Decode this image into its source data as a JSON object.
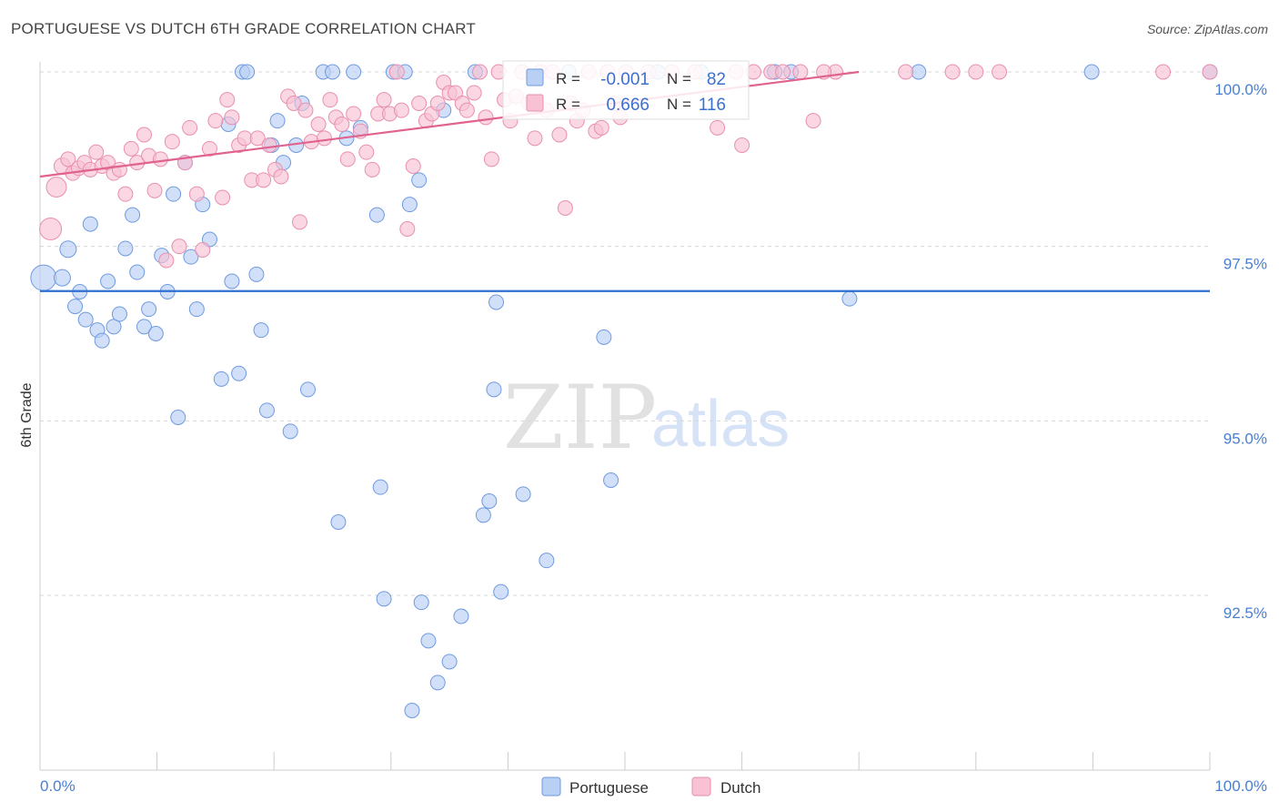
{
  "header": {
    "title": "PORTUGUESE VS DUTCH 6TH GRADE CORRELATION CHART",
    "source": "Source: ZipAtlas.com"
  },
  "watermark": {
    "zip": "ZIP",
    "atlas": "atlas"
  },
  "stats": {
    "r_label": "R =",
    "n_label": "N =",
    "portuguese": {
      "r": "-0.001",
      "n": "82"
    },
    "dutch": {
      "r": "0.666",
      "n": "116"
    }
  },
  "legend": {
    "portuguese": "Portuguese",
    "dutch": "Dutch"
  },
  "colors": {
    "portuguese_fill": "#b8d0f4",
    "portuguese_stroke": "#6f9ae0",
    "portuguese_line": "#2f6fd0",
    "dutch_fill": "#f8c2d4",
    "dutch_stroke": "#e98fb0",
    "dutch_line": "#e0628e"
  },
  "chart_data": {
    "type": "scatter",
    "title": "PORTUGUESE VS DUTCH 6TH GRADE CORRELATION CHART",
    "xlabel": "",
    "ylabel": "6th Grade",
    "xlim": [
      0,
      100
    ],
    "ylim": [
      90.0,
      100.4
    ],
    "x_tick_labels": [
      "0.0%",
      "100.0%"
    ],
    "y_ticks": [
      {
        "value": 100.0,
        "label": "100.0%"
      },
      {
        "value": 97.5,
        "label": "97.5%"
      },
      {
        "value": 95.0,
        "label": "95.0%"
      },
      {
        "value": 92.5,
        "label": "92.5%"
      }
    ],
    "legend_position": "bottom",
    "series": [
      {
        "name": "Portuguese",
        "r": -0.001,
        "n": 82,
        "trend": {
          "x": [
            0,
            100
          ],
          "y": [
            96.86,
            96.86
          ]
        },
        "points": [
          [
            0.3,
            97.05,
            28
          ],
          [
            1.9,
            97.05,
            18
          ],
          [
            2.4,
            97.46,
            18
          ],
          [
            3.0,
            96.64,
            16
          ],
          [
            3.4,
            96.85,
            16
          ],
          [
            3.9,
            96.45,
            16
          ],
          [
            4.3,
            97.82,
            16
          ],
          [
            4.9,
            96.3,
            16
          ],
          [
            5.3,
            96.15,
            16
          ],
          [
            5.8,
            97.0,
            16
          ],
          [
            6.3,
            96.35,
            16
          ],
          [
            6.8,
            96.53,
            16
          ],
          [
            7.3,
            97.47,
            16
          ],
          [
            7.9,
            97.95,
            16
          ],
          [
            8.3,
            97.13,
            16
          ],
          [
            8.9,
            96.35,
            16
          ],
          [
            9.3,
            96.6,
            16
          ],
          [
            9.9,
            96.25,
            16
          ],
          [
            10.4,
            97.37,
            16
          ],
          [
            10.9,
            96.85,
            16
          ],
          [
            11.4,
            98.25,
            16
          ],
          [
            11.8,
            95.05,
            16
          ],
          [
            12.4,
            98.7,
            16
          ],
          [
            12.9,
            97.35,
            16
          ],
          [
            13.4,
            96.6,
            16
          ],
          [
            13.9,
            98.1,
            16
          ],
          [
            14.5,
            97.6,
            16
          ],
          [
            15.5,
            95.6,
            16
          ],
          [
            16.1,
            99.25,
            16
          ],
          [
            16.4,
            97.0,
            16
          ],
          [
            17.0,
            95.68,
            16
          ],
          [
            17.3,
            100.0,
            16
          ],
          [
            17.7,
            100.0,
            16
          ],
          [
            18.5,
            97.1,
            16
          ],
          [
            18.9,
            96.3,
            16
          ],
          [
            19.4,
            95.15,
            16
          ],
          [
            19.8,
            98.95,
            16
          ],
          [
            20.3,
            99.3,
            16
          ],
          [
            20.8,
            98.7,
            16
          ],
          [
            21.4,
            94.85,
            16
          ],
          [
            21.9,
            98.95,
            16
          ],
          [
            22.4,
            99.55,
            16
          ],
          [
            22.9,
            95.45,
            16
          ],
          [
            24.2,
            100.0,
            16
          ],
          [
            25.0,
            100.0,
            16
          ],
          [
            25.5,
            93.55,
            16
          ],
          [
            26.2,
            99.05,
            16
          ],
          [
            26.8,
            100.0,
            16
          ],
          [
            27.4,
            99.2,
            16
          ],
          [
            28.8,
            97.95,
            16
          ],
          [
            29.1,
            94.05,
            16
          ],
          [
            29.4,
            92.45,
            16
          ],
          [
            30.2,
            100.0,
            16
          ],
          [
            31.2,
            100.0,
            16
          ],
          [
            31.6,
            98.1,
            16
          ],
          [
            31.8,
            90.85,
            16
          ],
          [
            32.4,
            98.45,
            16
          ],
          [
            32.6,
            92.4,
            16
          ],
          [
            33.2,
            91.85,
            16
          ],
          [
            34.0,
            91.25,
            16
          ],
          [
            34.5,
            99.45,
            16
          ],
          [
            35.0,
            91.55,
            16
          ],
          [
            36.0,
            92.2,
            16
          ],
          [
            37.2,
            100.0,
            16
          ],
          [
            37.9,
            93.65,
            16
          ],
          [
            38.4,
            93.85,
            16
          ],
          [
            38.8,
            95.45,
            16
          ],
          [
            39.0,
            96.7,
            16
          ],
          [
            39.4,
            92.55,
            16
          ],
          [
            41.3,
            93.95,
            16
          ],
          [
            43.3,
            93.0,
            16
          ],
          [
            45.2,
            100.0,
            16
          ],
          [
            48.2,
            96.2,
            16
          ],
          [
            48.8,
            94.15,
            16
          ],
          [
            52.8,
            100.0,
            16
          ],
          [
            56.5,
            100.0,
            16
          ],
          [
            62.8,
            100.0,
            16
          ],
          [
            64.2,
            100.0,
            16
          ],
          [
            69.2,
            96.75,
            16
          ],
          [
            75.1,
            100.0,
            16
          ],
          [
            89.9,
            100.0,
            16
          ],
          [
            100.0,
            100.0,
            16
          ]
        ]
      },
      {
        "name": "Dutch",
        "r": 0.666,
        "n": 116,
        "trend": {
          "x": [
            0,
            70
          ],
          "y": [
            98.5,
            100.0
          ]
        },
        "points": [
          [
            0.9,
            97.75,
            24
          ],
          [
            1.4,
            98.35,
            22
          ],
          [
            1.9,
            98.65,
            18
          ],
          [
            2.4,
            98.75,
            16
          ],
          [
            2.8,
            98.55,
            16
          ],
          [
            3.3,
            98.62,
            16
          ],
          [
            3.8,
            98.7,
            16
          ],
          [
            4.3,
            98.6,
            16
          ],
          [
            4.8,
            98.85,
            16
          ],
          [
            5.3,
            98.65,
            16
          ],
          [
            5.8,
            98.7,
            16
          ],
          [
            6.3,
            98.55,
            16
          ],
          [
            6.8,
            98.6,
            16
          ],
          [
            7.3,
            98.25,
            16
          ],
          [
            7.8,
            98.9,
            16
          ],
          [
            8.3,
            98.7,
            16
          ],
          [
            8.9,
            99.1,
            16
          ],
          [
            9.3,
            98.8,
            16
          ],
          [
            9.8,
            98.3,
            16
          ],
          [
            10.3,
            98.75,
            16
          ],
          [
            10.8,
            97.3,
            16
          ],
          [
            11.3,
            99.0,
            16
          ],
          [
            11.9,
            97.5,
            16
          ],
          [
            12.4,
            98.7,
            16
          ],
          [
            12.8,
            99.2,
            16
          ],
          [
            13.4,
            98.25,
            16
          ],
          [
            13.9,
            97.45,
            16
          ],
          [
            14.5,
            98.9,
            16
          ],
          [
            15.0,
            99.3,
            16
          ],
          [
            15.6,
            98.2,
            16
          ],
          [
            16.0,
            99.6,
            16
          ],
          [
            16.4,
            99.35,
            16
          ],
          [
            17.0,
            98.95,
            16
          ],
          [
            17.5,
            99.05,
            16
          ],
          [
            18.1,
            98.45,
            16
          ],
          [
            18.6,
            99.05,
            16
          ],
          [
            19.1,
            98.45,
            16
          ],
          [
            19.6,
            98.95,
            16
          ],
          [
            20.1,
            98.6,
            16
          ],
          [
            20.6,
            98.5,
            16
          ],
          [
            21.2,
            99.65,
            16
          ],
          [
            21.7,
            99.55,
            16
          ],
          [
            22.2,
            97.85,
            16
          ],
          [
            22.7,
            99.45,
            16
          ],
          [
            23.2,
            99.0,
            16
          ],
          [
            23.8,
            99.25,
            16
          ],
          [
            24.3,
            99.05,
            16
          ],
          [
            24.8,
            99.6,
            16
          ],
          [
            25.3,
            99.35,
            16
          ],
          [
            25.8,
            99.25,
            16
          ],
          [
            26.3,
            98.75,
            16
          ],
          [
            26.8,
            99.4,
            16
          ],
          [
            27.4,
            99.15,
            16
          ],
          [
            27.9,
            98.85,
            16
          ],
          [
            28.4,
            98.6,
            16
          ],
          [
            28.9,
            99.4,
            16
          ],
          [
            29.4,
            99.6,
            16
          ],
          [
            29.9,
            99.4,
            16
          ],
          [
            30.5,
            100.0,
            16
          ],
          [
            30.9,
            99.45,
            16
          ],
          [
            31.4,
            97.75,
            16
          ],
          [
            31.9,
            98.65,
            16
          ],
          [
            32.4,
            99.55,
            16
          ],
          [
            33.0,
            99.3,
            16
          ],
          [
            33.5,
            99.4,
            16
          ],
          [
            34.0,
            99.55,
            16
          ],
          [
            34.5,
            99.85,
            16
          ],
          [
            35.0,
            99.7,
            16
          ],
          [
            35.5,
            99.7,
            16
          ],
          [
            36.1,
            99.55,
            16
          ],
          [
            36.5,
            99.45,
            16
          ],
          [
            37.1,
            99.7,
            16
          ],
          [
            37.6,
            100.0,
            16
          ],
          [
            38.1,
            99.35,
            16
          ],
          [
            38.6,
            98.75,
            16
          ],
          [
            39.2,
            100.0,
            16
          ],
          [
            39.7,
            99.6,
            16
          ],
          [
            40.2,
            99.3,
            16
          ],
          [
            40.7,
            99.65,
            16
          ],
          [
            41.2,
            100.0,
            16
          ],
          [
            41.8,
            99.55,
            16
          ],
          [
            42.3,
            99.05,
            16
          ],
          [
            42.8,
            100.0,
            16
          ],
          [
            43.3,
            99.45,
            16
          ],
          [
            43.8,
            100.0,
            16
          ],
          [
            44.4,
            99.1,
            16
          ],
          [
            44.9,
            98.05,
            16
          ],
          [
            45.4,
            99.55,
            16
          ],
          [
            45.9,
            99.3,
            16
          ],
          [
            46.4,
            99.45,
            16
          ],
          [
            46.9,
            100.0,
            16
          ],
          [
            47.5,
            99.15,
            16
          ],
          [
            48.0,
            99.2,
            16
          ],
          [
            48.5,
            100.0,
            16
          ],
          [
            49.1,
            99.55,
            16
          ],
          [
            49.6,
            99.35,
            16
          ],
          [
            50.1,
            100.0,
            16
          ],
          [
            52.0,
            100.0,
            16
          ],
          [
            54.0,
            100.0,
            16
          ],
          [
            56.0,
            100.0,
            16
          ],
          [
            57.9,
            99.2,
            16
          ],
          [
            59.5,
            100.0,
            16
          ],
          [
            60.0,
            98.95,
            16
          ],
          [
            61.0,
            100.0,
            16
          ],
          [
            62.5,
            100.0,
            16
          ],
          [
            63.5,
            100.0,
            16
          ],
          [
            65.0,
            100.0,
            16
          ],
          [
            66.1,
            99.3,
            16
          ],
          [
            68.0,
            100.0,
            16
          ],
          [
            74.0,
            100.0,
            16
          ],
          [
            78.0,
            100.0,
            16
          ],
          [
            80.0,
            100.0,
            16
          ],
          [
            82.0,
            100.0,
            16
          ],
          [
            96.0,
            100.0,
            16
          ],
          [
            100.0,
            100.0,
            16
          ],
          [
            67.0,
            100.0,
            16
          ]
        ]
      }
    ]
  }
}
